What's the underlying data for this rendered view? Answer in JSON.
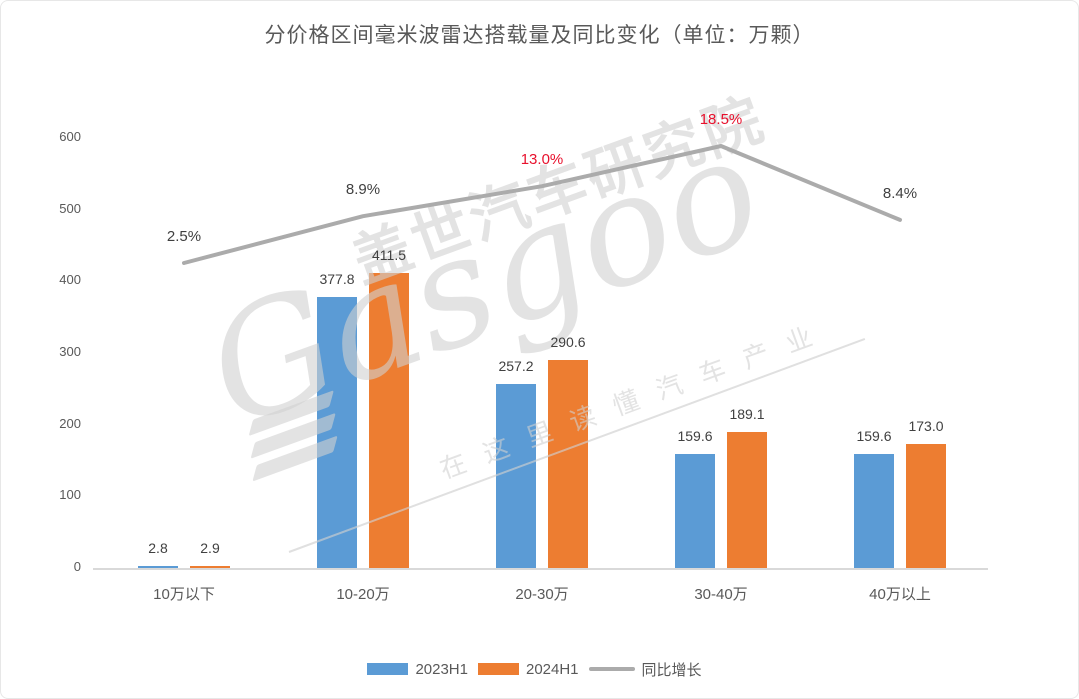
{
  "chart_data": {
    "type": "bar",
    "title": "分价格区间毫米波雷达搭载量及同比变化（单位：万颗）",
    "categories": [
      "10万以下",
      "10-20万",
      "20-30万",
      "30-40万",
      "40万以上"
    ],
    "series": [
      {
        "name": "2023H1",
        "type": "bar",
        "color": "#5B9BD5",
        "values": [
          2.8,
          377.8,
          257.2,
          159.6,
          159.6
        ],
        "labels": [
          "2.8",
          "377.8",
          "257.2",
          "159.6",
          "159.6"
        ]
      },
      {
        "name": "2024H1",
        "type": "bar",
        "color": "#ED7D31",
        "values": [
          2.9,
          411.5,
          290.6,
          189.1,
          173.0
        ],
        "labels": [
          "2.9",
          "411.5",
          "290.6",
          "189.1",
          "173.0"
        ]
      },
      {
        "name": "同比增长",
        "type": "line",
        "color": "#ABABAB",
        "unit": "%",
        "values": [
          2.5,
          8.9,
          13.0,
          18.5,
          8.4
        ],
        "labels": [
          "2.5%",
          "8.9%",
          "13.0%",
          "18.5%",
          "8.4%"
        ],
        "label_colors": [
          "#3F3F3F",
          "#3F3F3F",
          "#E8112D",
          "#E8112D",
          "#3F3F3F"
        ]
      }
    ],
    "y_axis": {
      "min": 0,
      "max": 600,
      "step": 100,
      "tick_labels": [
        "0",
        "100",
        "200",
        "300",
        "400",
        "500",
        "600"
      ]
    },
    "grid": false,
    "legend_position": "bottom",
    "legend": [
      {
        "label": "2023H1",
        "color": "#5B9BD5",
        "swatch": "rect"
      },
      {
        "label": "2024H1",
        "color": "#ED7D31",
        "swatch": "rect"
      },
      {
        "label": "同比增长",
        "color": "#ABABAB",
        "swatch": "line"
      }
    ]
  },
  "watermark": {
    "brand_cn": "盖世汽车研究院",
    "brand_en": "Gasgoo",
    "slogan": "在这里读懂汽车产业"
  }
}
